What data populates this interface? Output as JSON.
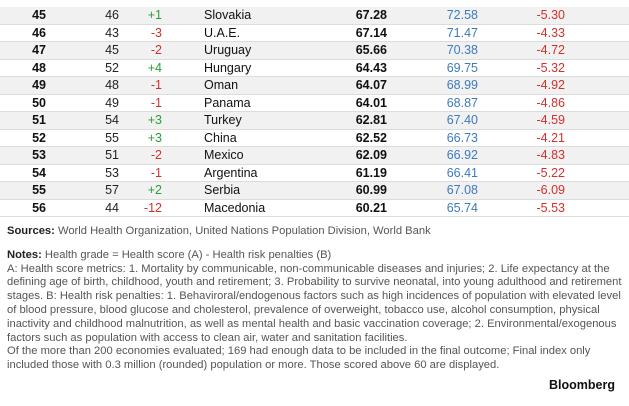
{
  "colors": {
    "positive": "#2e9c3a",
    "negative": "#d0312d",
    "score": "#3b7bbf"
  },
  "rows": [
    {
      "rank": "45",
      "prev": "46",
      "change": "+1",
      "country": "Slovakia",
      "grade": "67.28",
      "score": "72.58",
      "penalty": "-5.30"
    },
    {
      "rank": "46",
      "prev": "43",
      "change": "-3",
      "country": "U.A.E.",
      "grade": "67.14",
      "score": "71.47",
      "penalty": "-4.33"
    },
    {
      "rank": "47",
      "prev": "45",
      "change": "-2",
      "country": "Uruguay",
      "grade": "65.66",
      "score": "70.38",
      "penalty": "-4.72"
    },
    {
      "rank": "48",
      "prev": "52",
      "change": "+4",
      "country": "Hungary",
      "grade": "64.43",
      "score": "69.75",
      "penalty": "-5.32"
    },
    {
      "rank": "49",
      "prev": "48",
      "change": "-1",
      "country": "Oman",
      "grade": "64.07",
      "score": "68.99",
      "penalty": "-4.92"
    },
    {
      "rank": "50",
      "prev": "49",
      "change": "-1",
      "country": "Panama",
      "grade": "64.01",
      "score": "68.87",
      "penalty": "-4.86"
    },
    {
      "rank": "51",
      "prev": "54",
      "change": "+3",
      "country": "Turkey",
      "grade": "62.81",
      "score": "67.40",
      "penalty": "-4.59"
    },
    {
      "rank": "52",
      "prev": "55",
      "change": "+3",
      "country": "China",
      "grade": "62.52",
      "score": "66.73",
      "penalty": "-4.21"
    },
    {
      "rank": "53",
      "prev": "51",
      "change": "-2",
      "country": "Mexico",
      "grade": "62.09",
      "score": "66.92",
      "penalty": "-4.83"
    },
    {
      "rank": "54",
      "prev": "53",
      "change": "-1",
      "country": "Argentina",
      "grade": "61.19",
      "score": "66.41",
      "penalty": "-5.22"
    },
    {
      "rank": "55",
      "prev": "57",
      "change": "+2",
      "country": "Serbia",
      "grade": "60.99",
      "score": "67.08",
      "penalty": "-6.09"
    },
    {
      "rank": "56",
      "prev": "44",
      "change": "-12",
      "country": "Macedonia",
      "grade": "60.21",
      "score": "65.74",
      "penalty": "-5.53"
    }
  ],
  "sources": {
    "label": "Sources:",
    "text": " World Health Organization, United Nations Population Division, World Bank"
  },
  "notes": {
    "label": "Notes:",
    "text": " Health grade = Health score (A) - Health risk penalties (B)",
    "body": "A: Health score metrics: 1. Mortality by communicable, non-communicable diseases and injuries; 2. Life expectancy at the defining age of birth, childhood, youth and retirement; 3. Probability to survive neonatal, into young adulthood and retirement stages. B: Health risk penalties: 1. Behaviroral/endogenous factors such as high incidences of population with elevated level of blood pressure, blood glucose and cholesterol, prevalence of overweight, tobacco use, alcohol consumption, physical inactivity and childhood malnutrition, as well as mental health and basic vaccination coverage; 2. Environmental/exogenous factors such as population with access to clean air, water and sanitation facilities.",
    "footer": "Of the more than 200 economies evaluated; 169 had enough data to be included in the final outcome; Final index only included those with 0.3 million (rounded) population or more. Those scored above 60 are displayed."
  },
  "brand": "Bloomberg"
}
